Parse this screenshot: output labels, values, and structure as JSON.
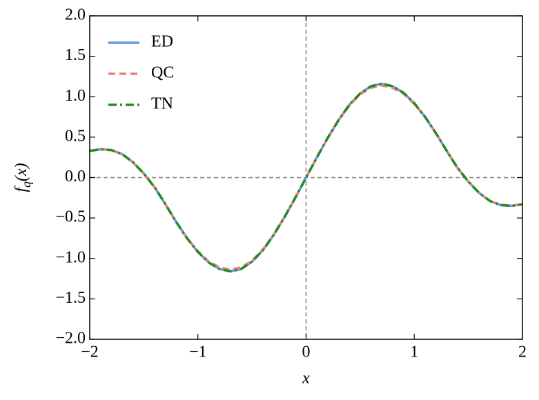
{
  "chart_data": {
    "type": "line",
    "xlabel": "x",
    "ylabel": "fq(x)",
    "x": [
      -2.0,
      -1.9,
      -1.8,
      -1.7,
      -1.6,
      -1.5,
      -1.4,
      -1.3,
      -1.2,
      -1.1,
      -1.0,
      -0.9,
      -0.8,
      -0.7,
      -0.6,
      -0.5,
      -0.4,
      -0.3,
      -0.2,
      -0.1,
      0.0,
      0.1,
      0.2,
      0.3,
      0.4,
      0.5,
      0.6,
      0.7,
      0.8,
      0.9,
      1.0,
      1.1,
      1.2,
      1.3,
      1.4,
      1.5,
      1.6,
      1.7,
      1.8,
      1.9,
      2.0
    ],
    "series": [
      {
        "name": "ED",
        "color": "#6495ed",
        "style": "solid",
        "values": [
          0.33,
          0.35,
          0.34,
          0.29,
          0.19,
          0.05,
          -0.12,
          -0.33,
          -0.55,
          -0.75,
          -0.92,
          -1.05,
          -1.13,
          -1.16,
          -1.13,
          -1.04,
          -0.9,
          -0.71,
          -0.49,
          -0.25,
          0.0,
          0.25,
          0.49,
          0.71,
          0.9,
          1.04,
          1.13,
          1.16,
          1.13,
          1.05,
          0.92,
          0.75,
          0.55,
          0.33,
          0.12,
          -0.05,
          -0.19,
          -0.29,
          -0.34,
          -0.35,
          -0.33
        ]
      },
      {
        "name": "QC",
        "color": "#f08070",
        "style": "dashed",
        "values": [
          0.33,
          0.35,
          0.34,
          0.29,
          0.19,
          0.05,
          -0.12,
          -0.33,
          -0.55,
          -0.75,
          -0.91,
          -1.04,
          -1.11,
          -1.14,
          -1.11,
          -1.03,
          -0.89,
          -0.71,
          -0.49,
          -0.25,
          0.0,
          0.25,
          0.49,
          0.71,
          0.89,
          1.03,
          1.11,
          1.14,
          1.11,
          1.04,
          0.91,
          0.75,
          0.55,
          0.33,
          0.12,
          -0.05,
          -0.19,
          -0.29,
          -0.34,
          -0.35,
          -0.33
        ]
      },
      {
        "name": "TN",
        "color": "#228b22",
        "style": "dashdot",
        "values": [
          0.33,
          0.35,
          0.34,
          0.29,
          0.19,
          0.05,
          -0.12,
          -0.33,
          -0.55,
          -0.75,
          -0.92,
          -1.05,
          -1.13,
          -1.16,
          -1.13,
          -1.04,
          -0.9,
          -0.71,
          -0.49,
          -0.25,
          0.0,
          0.25,
          0.49,
          0.71,
          0.9,
          1.04,
          1.13,
          1.16,
          1.13,
          1.05,
          0.92,
          0.75,
          0.55,
          0.33,
          0.12,
          -0.05,
          -0.19,
          -0.29,
          -0.34,
          -0.35,
          -0.33
        ]
      }
    ],
    "xlim": [
      -2,
      2
    ],
    "xticks": [
      {
        "value": -2,
        "label": "−2"
      },
      {
        "value": -1,
        "label": "−1"
      },
      0,
      1,
      2
    ],
    "ylim": [
      -2,
      2
    ],
    "yticks": [
      {
        "value": -2,
        "label": "−2.0"
      },
      {
        "value": -1.5,
        "label": "−1.5"
      },
      {
        "value": -1,
        "label": "−1.0"
      },
      {
        "value": -0.5,
        "label": "−0.5"
      },
      {
        "value": 0,
        "label": "0.0"
      },
      {
        "value": 0.5,
        "label": "0.5"
      },
      {
        "value": 1,
        "label": "1.0"
      },
      {
        "value": 1.5,
        "label": "1.5"
      },
      {
        "value": 2,
        "label": "2.0"
      }
    ],
    "reference_lines": {
      "x": 0,
      "y": 0
    },
    "legend": "upper left",
    "grid": false
  }
}
